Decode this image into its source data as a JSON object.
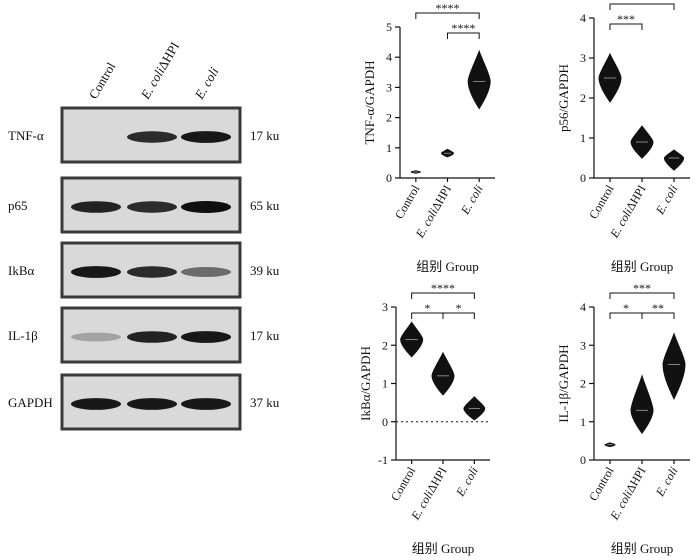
{
  "blot": {
    "lane_labels": [
      "Control",
      "E. coliΔHPI",
      "E. coli"
    ],
    "rows": [
      {
        "protein": "TNF-α",
        "size": "17 ku",
        "intensity": [
          0.05,
          0.85,
          0.95
        ]
      },
      {
        "protein": "p65",
        "size": "65 ku",
        "intensity": [
          0.9,
          0.85,
          1.0
        ]
      },
      {
        "protein": "IkBα",
        "size": "39 ku",
        "intensity": [
          0.95,
          0.85,
          0.5
        ]
      },
      {
        "protein": "IL-1β",
        "size": "17 ku",
        "intensity": [
          0.2,
          0.9,
          0.95
        ]
      },
      {
        "protein": "GAPDH",
        "size": "37 ku",
        "intensity": [
          0.95,
          0.95,
          0.95
        ]
      }
    ]
  },
  "chart_data": [
    {
      "type": "violin",
      "categories": [
        "Control",
        "E. coliΔHPI",
        "E. coli"
      ],
      "ylabel": "TNF-α/GAPDH",
      "xlabel": "组别 Group",
      "ylim": [
        0,
        5
      ],
      "yticks": [
        0,
        1,
        2,
        3,
        4,
        5
      ],
      "series": [
        {
          "median": 0.2,
          "min": 0.16,
          "max": 0.24
        },
        {
          "median": 0.82,
          "min": 0.7,
          "max": 0.95
        },
        {
          "median": 3.2,
          "min": 2.3,
          "max": 4.2
        }
      ],
      "significance": [
        {
          "from": 0,
          "to": 2,
          "label": "****"
        },
        {
          "from": 1,
          "to": 2,
          "label": "****"
        }
      ]
    },
    {
      "type": "violin",
      "categories": [
        "Control",
        "E. coliΔHPI",
        "E. coli"
      ],
      "ylabel": "p56/GAPDH",
      "xlabel": "组别 Group",
      "ylim": [
        0,
        4
      ],
      "yticks": [
        0,
        1,
        2,
        3,
        4
      ],
      "series": [
        {
          "median": 2.5,
          "min": 1.9,
          "max": 3.1
        },
        {
          "median": 0.9,
          "min": 0.5,
          "max": 1.3
        },
        {
          "median": 0.5,
          "min": 0.2,
          "max": 0.7
        }
      ],
      "significance": [
        {
          "from": 0,
          "to": 2,
          "label": "****"
        },
        {
          "from": 0,
          "to": 1,
          "label": "***"
        }
      ]
    },
    {
      "type": "violin",
      "categories": [
        "Control",
        "E. coliΔHPI",
        "E. coli"
      ],
      "ylabel": "IkBα/GAPDH",
      "xlabel": "组别 Group",
      "ylim": [
        -1,
        3
      ],
      "yticks": [
        -1,
        0,
        1,
        2,
        3
      ],
      "baseline": 0,
      "series": [
        {
          "median": 2.15,
          "min": 1.7,
          "max": 2.6
        },
        {
          "median": 1.2,
          "min": 0.7,
          "max": 1.8
        },
        {
          "median": 0.35,
          "min": 0.05,
          "max": 0.65
        }
      ],
      "significance": [
        {
          "from": 0,
          "to": 2,
          "label": "****"
        },
        {
          "from": 0,
          "to": 1,
          "label": "*"
        },
        {
          "from": 1,
          "to": 2,
          "label": "*"
        }
      ]
    },
    {
      "type": "violin",
      "categories": [
        "Control",
        "E. coliΔHPI",
        "E. coli"
      ],
      "ylabel": "IL-1β/GAPDH",
      "xlabel": "组别 Group",
      "ylim": [
        0,
        4
      ],
      "yticks": [
        0,
        1,
        2,
        3,
        4
      ],
      "series": [
        {
          "median": 0.4,
          "min": 0.35,
          "max": 0.45
        },
        {
          "median": 1.3,
          "min": 0.7,
          "max": 2.2
        },
        {
          "median": 2.5,
          "min": 1.6,
          "max": 3.3
        }
      ],
      "significance": [
        {
          "from": 0,
          "to": 2,
          "label": "***"
        },
        {
          "from": 0,
          "to": 1,
          "label": "*"
        },
        {
          "from": 1,
          "to": 2,
          "label": "**"
        }
      ]
    }
  ]
}
